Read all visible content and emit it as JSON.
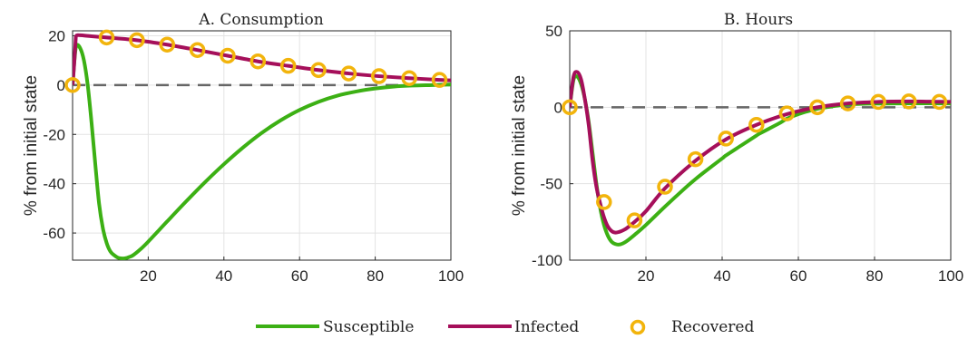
{
  "chart_data": [
    {
      "type": "line",
      "title": "A. Consumption",
      "ylabel": "% from initial state",
      "xlabel": "",
      "xlim": [
        0,
        100
      ],
      "ylim": [
        -71,
        22
      ],
      "xticks": [
        20,
        40,
        60,
        80,
        100
      ],
      "yticks": [
        20,
        0,
        -20,
        -40,
        -60
      ],
      "xtick_labels": [
        "20",
        "40",
        "60",
        "80",
        "100"
      ],
      "ytick_labels": [
        "20",
        "0",
        "-20",
        "-40",
        "-60"
      ],
      "grid": true,
      "zero_line": 0,
      "series": [
        {
          "name": "Susceptible",
          "color": "#3cb014",
          "marker": "none",
          "x": [
            0,
            0.5,
            1,
            2,
            3,
            4,
            5,
            6,
            7,
            8,
            9,
            10,
            11,
            12,
            13,
            14,
            15,
            16,
            18,
            20,
            25,
            30,
            35,
            40,
            45,
            50,
            55,
            60,
            65,
            70,
            75,
            80,
            85,
            90,
            95,
            100
          ],
          "y": [
            0,
            10,
            16,
            15,
            10,
            0,
            -15,
            -32,
            -48,
            -58,
            -64,
            -67.5,
            -69,
            -70,
            -70.3,
            -70.2,
            -69.7,
            -69,
            -66.5,
            -63.5,
            -55.3,
            -47.2,
            -39.4,
            -32.1,
            -25.4,
            -19.4,
            -14.3,
            -10.1,
            -6.8,
            -4.3,
            -2.6,
            -1.4,
            -0.6,
            -0.2,
            0,
            0.2
          ]
        },
        {
          "name": "Infected",
          "color": "#a50f5a",
          "marker": "none",
          "x": [
            0,
            0.4,
            0.8,
            1,
            2,
            5,
            9,
            17,
            25,
            33,
            41,
            49,
            57,
            65,
            73,
            81,
            89,
            97,
            100
          ],
          "y": [
            0,
            8,
            18,
            20,
            20.2,
            19.8,
            19.3,
            18.2,
            16.4,
            14.2,
            11.9,
            9.6,
            7.8,
            6.1,
            4.7,
            3.6,
            2.8,
            2.1,
            1.9
          ]
        },
        {
          "name": "Recovered",
          "color": "#f2b40c",
          "marker": "circle",
          "line": "none",
          "x": [
            0,
            9,
            17,
            25,
            33,
            41,
            49,
            57,
            65,
            73,
            81,
            89,
            97
          ],
          "y": [
            0,
            19.3,
            18.2,
            16.4,
            14.2,
            11.9,
            9.6,
            7.8,
            6.1,
            4.7,
            3.6,
            2.8,
            2.1
          ]
        }
      ]
    },
    {
      "type": "line",
      "title": "B. Hours",
      "ylabel": "% from initial state",
      "xlabel": "",
      "xlim": [
        0,
        100
      ],
      "ylim": [
        -100,
        50
      ],
      "xticks": [
        20,
        40,
        60,
        80,
        100
      ],
      "yticks": [
        50,
        0,
        -50,
        -100
      ],
      "xtick_labels": [
        "20",
        "40",
        "60",
        "80",
        "100"
      ],
      "ytick_labels": [
        "50",
        "0",
        "-50",
        "-100"
      ],
      "grid": true,
      "zero_line": 0,
      "series": [
        {
          "name": "Susceptible",
          "color": "#3cb014",
          "marker": "none",
          "x": [
            0,
            1,
            2,
            3,
            4,
            5,
            6,
            7,
            8,
            9,
            10,
            11,
            12,
            13,
            14,
            15,
            17,
            20,
            25,
            30,
            33,
            35,
            40,
            41,
            45,
            49,
            50,
            55,
            57,
            60,
            65,
            70,
            73,
            80,
            90,
            100
          ],
          "y": [
            0,
            18,
            20,
            15,
            5,
            -10,
            -30,
            -50,
            -66,
            -77,
            -84,
            -88,
            -89.5,
            -89.8,
            -89,
            -87.5,
            -83.5,
            -77,
            -65,
            -53.5,
            -47,
            -43,
            -33.5,
            -31.5,
            -25,
            -18.5,
            -17,
            -10.5,
            -7.5,
            -4.5,
            -1,
            1,
            1.8,
            2.4,
            2.6,
            2.5
          ]
        },
        {
          "name": "Infected",
          "color": "#a50f5a",
          "marker": "none",
          "x": [
            0,
            1,
            2,
            3,
            4,
            5,
            6,
            7,
            8,
            9,
            10,
            11,
            12,
            13,
            14,
            15,
            17,
            20,
            25,
            33,
            41,
            49,
            57,
            65,
            73,
            81,
            89,
            97,
            100
          ],
          "y": [
            0,
            20,
            23,
            18,
            5,
            -12,
            -35,
            -52,
            -63,
            -72,
            -78,
            -81,
            -82,
            -81.5,
            -80.5,
            -79,
            -75,
            -68,
            -53,
            -35,
            -21,
            -11.5,
            -4.5,
            0,
            2.5,
            3.5,
            3.8,
            3.6,
            3.5
          ]
        },
        {
          "name": "Recovered",
          "color": "#f2b40c",
          "marker": "circle",
          "line": "none",
          "x": [
            0,
            9,
            17,
            25,
            33,
            41,
            49,
            57,
            65,
            73,
            81,
            89,
            97
          ],
          "y": [
            0,
            -62,
            -74,
            -52,
            -34,
            -20.5,
            -11.5,
            -4,
            0,
            2.5,
            3.5,
            3.8,
            3.5
          ]
        }
      ]
    }
  ],
  "legend": {
    "placement": "bottom-center",
    "items": [
      {
        "label": "Susceptible",
        "color": "#3cb014",
        "kind": "line"
      },
      {
        "label": "Infected",
        "color": "#a50f5a",
        "kind": "line"
      },
      {
        "label": "Recovered",
        "color": "#f2b40c",
        "kind": "circle"
      }
    ]
  }
}
